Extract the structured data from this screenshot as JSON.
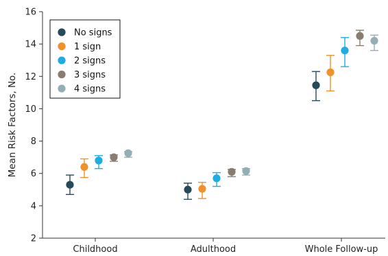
{
  "chart_data": {
    "type": "scatter",
    "title": "",
    "xlabel": "",
    "ylabel": "Mean Risk Factors, No.",
    "ylim": [
      2,
      16
    ],
    "yticks": [
      2,
      4,
      6,
      8,
      10,
      12,
      14,
      16
    ],
    "grid": false,
    "legend_position": "top-left",
    "categories": [
      "Childhood",
      "Adulthood",
      "Whole Follow-up"
    ],
    "series": [
      {
        "name": "No signs",
        "color": "#244a5c",
        "values": [
          5.3,
          5.0,
          11.45
        ],
        "lower": [
          4.7,
          4.4,
          10.5
        ],
        "upper": [
          5.9,
          5.4,
          12.3
        ]
      },
      {
        "name": "1 sign",
        "color": "#f0922b",
        "values": [
          6.4,
          5.05,
          12.25
        ],
        "lower": [
          5.75,
          4.45,
          11.1
        ],
        "upper": [
          6.9,
          5.45,
          13.3
        ]
      },
      {
        "name": "2 signs",
        "color": "#1eace3",
        "values": [
          6.8,
          5.7,
          13.6
        ],
        "lower": [
          6.3,
          5.2,
          12.6
        ],
        "upper": [
          7.1,
          6.05,
          14.4
        ]
      },
      {
        "name": "3 signs",
        "color": "#8a7d6f",
        "values": [
          7.0,
          6.1,
          14.5
        ],
        "lower": [
          6.75,
          5.8,
          13.9
        ],
        "upper": [
          7.15,
          6.25,
          14.85
        ]
      },
      {
        "name": "4 signs",
        "color": "#93aeb5",
        "values": [
          7.25,
          6.15,
          14.2
        ],
        "lower": [
          7.0,
          5.9,
          13.6
        ],
        "upper": [
          7.35,
          6.3,
          14.55
        ]
      }
    ]
  }
}
